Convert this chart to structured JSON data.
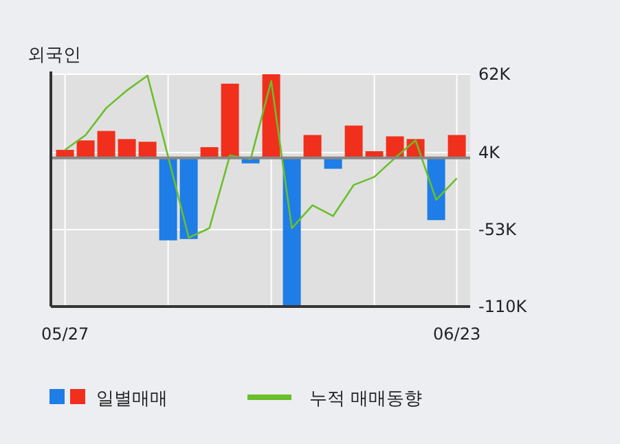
{
  "chart_data": {
    "type": "bar",
    "title": "외국인",
    "categories": [
      "05/27",
      null,
      null,
      null,
      null,
      null,
      null,
      null,
      null,
      null,
      null,
      null,
      null,
      null,
      null,
      null,
      null,
      null,
      null,
      "06/23"
    ],
    "series": [
      {
        "name": "일별매매",
        "colors": [
          "#f0301c",
          "#f0301c",
          "#f0301c",
          "#f0301c",
          "#f0301c",
          "#1e7de6",
          "#1e7de6",
          "#f0301c",
          "#f0301c",
          "#1e7de6",
          "#f0301c",
          "#1e7de6",
          "#f0301c",
          "#1e7de6",
          "#f0301c",
          "#f0301c",
          "#f0301c",
          "#f0301c",
          "#1e7de6",
          "#f0301c"
        ],
        "values": [
          6,
          13,
          20,
          14,
          12,
          -61,
          -60,
          8,
          55,
          -4,
          62,
          -109,
          17,
          -8,
          24,
          5,
          16,
          14,
          -46,
          17
        ]
      },
      {
        "name": "누적 매매동향",
        "type": "line",
        "color": "#6abf2a",
        "values": [
          6,
          17,
          37,
          50,
          61,
          1,
          -59,
          -52,
          2,
          -1,
          57,
          -52,
          -35,
          -43,
          -20,
          -14,
          0,
          13,
          -31,
          -15
        ]
      }
    ],
    "ylim": [
      -110,
      62
    ],
    "yticks": [
      {
        "value": 62,
        "label": "62K"
      },
      {
        "value": 4,
        "label": "4K"
      },
      {
        "value": -53,
        "label": "-53K"
      },
      {
        "value": -110,
        "label": "-110K"
      }
    ],
    "grid": true,
    "legend": "bottom"
  }
}
